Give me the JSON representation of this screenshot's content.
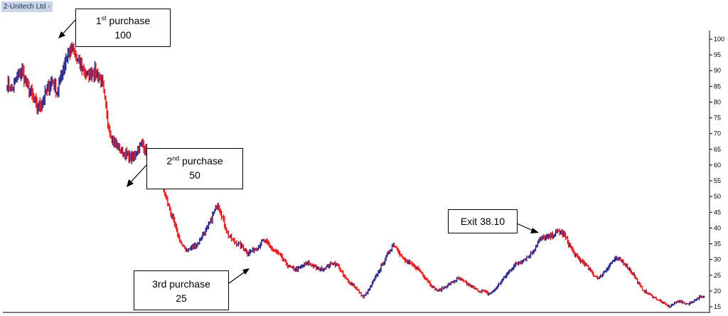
{
  "window": {
    "title": "2-Unitech Ltd -"
  },
  "annotations": [
    {
      "key": "p1",
      "ordinal": "1",
      "suffix": "st",
      "label": "purchase",
      "value": "100"
    },
    {
      "key": "p2",
      "ordinal": "2",
      "suffix": "nd",
      "label": "purchase",
      "value": "50"
    },
    {
      "key": "p3",
      "text": "3rd purchase",
      "value": "25"
    },
    {
      "key": "exit",
      "text": "Exit 38.10"
    }
  ],
  "chart_data": {
    "type": "line",
    "title": "2-Unitech Ltd -",
    "xlabel": "",
    "ylabel": "",
    "ylim": [
      14,
      103
    ],
    "y_ticks": [
      15,
      20,
      25,
      30,
      35,
      40,
      45,
      50,
      55,
      60,
      65,
      70,
      75,
      80,
      85,
      90,
      95,
      100
    ],
    "grid": false,
    "colors": {
      "up": "#1a1a8c",
      "down": "#ff0000"
    },
    "series": [
      {
        "values": [
          86,
          84,
          88,
          90,
          85,
          82,
          78,
          80,
          84,
          87,
          83,
          90,
          95,
          97,
          93,
          91,
          88,
          90,
          89,
          86,
          74,
          68,
          66,
          64,
          63,
          62,
          65,
          67,
          63,
          60,
          57,
          53,
          48,
          43,
          38,
          34,
          33,
          34,
          35,
          38,
          40,
          44,
          48,
          43,
          38,
          36,
          35,
          34,
          32,
          33,
          34,
          36,
          35,
          33,
          32,
          30,
          28,
          27,
          27,
          28,
          29,
          28,
          27,
          27,
          28,
          29,
          28,
          25,
          23,
          22,
          20,
          18,
          20,
          23,
          26,
          29,
          32,
          35,
          33,
          30,
          29,
          28,
          27,
          25,
          23,
          21,
          20,
          21,
          22,
          23,
          24,
          23,
          22,
          21,
          20,
          20,
          19,
          20,
          22,
          24,
          26,
          28,
          29,
          30,
          31,
          33,
          36,
          37,
          37,
          38,
          39,
          38,
          35,
          32,
          30,
          29,
          27,
          25,
          24,
          26,
          28,
          30,
          30,
          29,
          27,
          25,
          22,
          20,
          19,
          18,
          17,
          16,
          15,
          16,
          17,
          16,
          16,
          17,
          18,
          18
        ]
      }
    ]
  }
}
